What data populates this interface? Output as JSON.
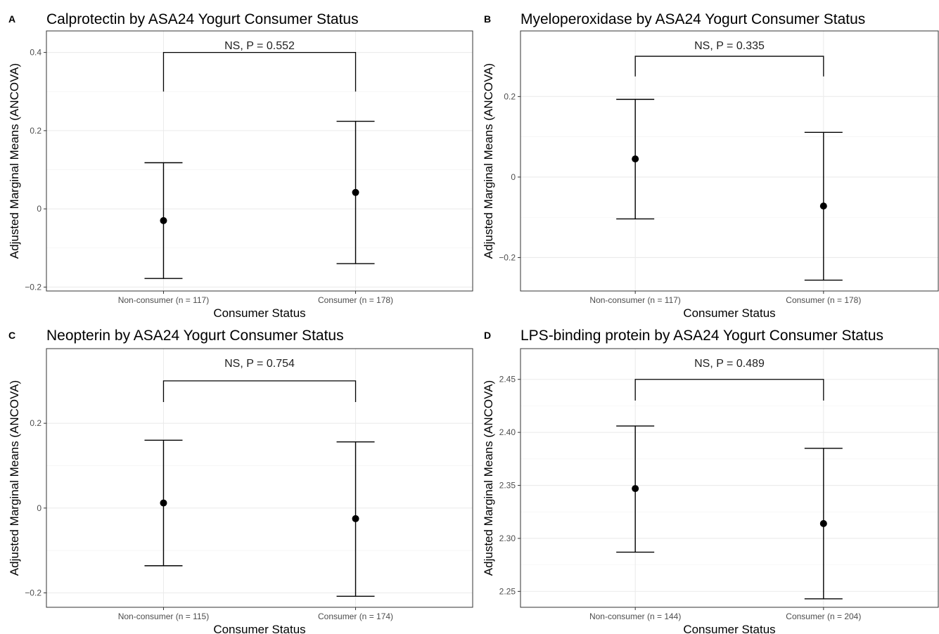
{
  "chart_data": [
    {
      "type": "scatter",
      "panel_label": "A",
      "title": "Calprotectin by ASA24 Yogurt Consumer Status",
      "xlabel": "Consumer Status",
      "ylabel": "Adjusted Marginal Means (ANCOVA)",
      "categories": [
        "Non-consumer (n = 117)",
        "Consumer (n = 178)"
      ],
      "values": [
        -0.03,
        0.042
      ],
      "lower": [
        -0.178,
        -0.14
      ],
      "upper": [
        0.118,
        0.224
      ],
      "ylim": [
        -0.21,
        0.455
      ],
      "yticks": [
        -0.2,
        0,
        0.2,
        0.4
      ],
      "ytick_labels": [
        "−0.2",
        "0",
        "0.2",
        "0.4"
      ],
      "bracket": {
        "y": 0.4,
        "drop_to": 0.3
      },
      "annotation": "NS, P = 0.552",
      "grid": true
    },
    {
      "type": "scatter",
      "panel_label": "B",
      "title": "Myeloperoxidase by ASA24 Yogurt Consumer Status",
      "xlabel": "Consumer Status",
      "ylabel": "Adjusted Marginal Means (ANCOVA)",
      "categories": [
        "Non-consumer (n = 117)",
        "Consumer (n = 178)"
      ],
      "values": [
        0.045,
        -0.072
      ],
      "lower": [
        -0.104,
        -0.256
      ],
      "upper": [
        0.193,
        0.111
      ],
      "ylim": [
        -0.283,
        0.363
      ],
      "yticks": [
        -0.2,
        0,
        0.2
      ],
      "ytick_labels": [
        "−0.2",
        "0",
        "0.2"
      ],
      "bracket": {
        "y": 0.3,
        "drop_to": 0.25
      },
      "annotation": "NS, P = 0.335",
      "grid": true
    },
    {
      "type": "scatter",
      "panel_label": "C",
      "title": "Neopterin by ASA24 Yogurt Consumer Status",
      "xlabel": "Consumer Status",
      "ylabel": "Adjusted Marginal Means (ANCOVA)",
      "categories": [
        "Non-consumer (n = 115)",
        "Consumer (n = 174)"
      ],
      "values": [
        0.012,
        -0.025
      ],
      "lower": [
        -0.136,
        -0.208
      ],
      "upper": [
        0.16,
        0.156
      ],
      "ylim": [
        -0.234,
        0.376
      ],
      "yticks": [
        -0.2,
        0,
        0.2
      ],
      "ytick_labels": [
        "−0.2",
        "0",
        "0.2"
      ],
      "bracket": {
        "y": 0.3,
        "drop_to": 0.25
      },
      "annotation": "NS, P = 0.754",
      "grid": true
    },
    {
      "type": "scatter",
      "panel_label": "D",
      "title": "LPS-binding protein by ASA24 Yogurt Consumer Status",
      "xlabel": "Consumer Status",
      "ylabel": "Adjusted Marginal Means (ANCOVA)",
      "categories": [
        "Non-consumer (n = 144)",
        "Consumer (n = 204)"
      ],
      "values": [
        2.347,
        2.314
      ],
      "lower": [
        2.287,
        2.243
      ],
      "upper": [
        2.406,
        2.385
      ],
      "ylim": [
        2.235,
        2.479
      ],
      "yticks": [
        2.25,
        2.3,
        2.35,
        2.4,
        2.45
      ],
      "ytick_labels": [
        "2.25",
        "2.30",
        "2.35",
        "2.40",
        "2.45"
      ],
      "bracket": {
        "y": 2.45,
        "drop_to": 2.43
      },
      "annotation": "NS, P = 0.489",
      "grid": true
    }
  ]
}
